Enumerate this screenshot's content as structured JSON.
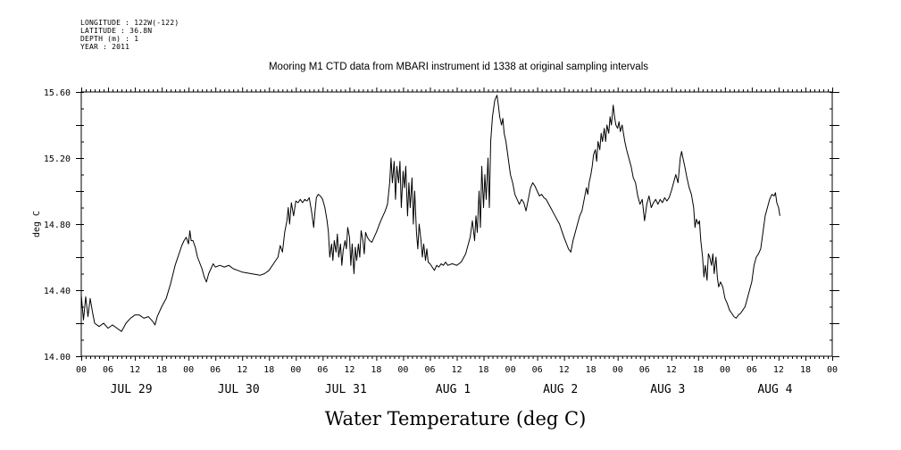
{
  "meta": {
    "longitude": "LONGITUDE : 122W(-122)",
    "latitude": "LATITUDE : 36.8N",
    "depth": "DEPTH (m) : 1",
    "year": "YEAR : 2011"
  },
  "chart_data": {
    "type": "line",
    "title": "Mooring M1 CTD data from MBARI instrument id 1338 at original sampling intervals",
    "xlabel": "Water Temperature (deg C)",
    "ylabel": "deg C",
    "ylim": [
      14.0,
      15.6
    ],
    "yticks": [
      "14.00",
      "14.40",
      "14.80",
      "15.20",
      "15.60"
    ],
    "xlim_hours": [
      0,
      168
    ],
    "hour_tick_labels": [
      "00",
      "06",
      "12",
      "18",
      "00",
      "06",
      "12",
      "18",
      "00",
      "06",
      "12",
      "18",
      "00",
      "06",
      "12",
      "18",
      "00",
      "06",
      "12",
      "18",
      "00",
      "06",
      "12",
      "18",
      "00",
      "06",
      "12",
      "18",
      "00"
    ],
    "day_labels": [
      "JUL 29",
      "JUL 30",
      "JUL 31",
      "AUG  1",
      "AUG  2",
      "AUG  3",
      "AUG  4"
    ],
    "grid": false,
    "series": [
      {
        "color": "#000000",
        "points": [
          [
            0,
            14.37
          ],
          [
            0.5,
            14.22
          ],
          [
            1,
            14.36
          ],
          [
            1.5,
            14.24
          ],
          [
            2,
            14.35
          ],
          [
            2.5,
            14.27
          ],
          [
            3,
            14.2
          ],
          [
            4,
            14.18
          ],
          [
            5,
            14.2
          ],
          [
            6,
            14.17
          ],
          [
            7,
            14.19
          ],
          [
            8,
            14.17
          ],
          [
            9,
            14.15
          ],
          [
            10,
            14.2
          ],
          [
            11,
            14.23
          ],
          [
            12,
            14.25
          ],
          [
            13,
            14.25
          ],
          [
            14,
            14.23
          ],
          [
            15,
            14.24
          ],
          [
            16,
            14.21
          ],
          [
            16.5,
            14.19
          ],
          [
            17,
            14.24
          ],
          [
            18,
            14.3
          ],
          [
            19,
            14.35
          ],
          [
            20,
            14.44
          ],
          [
            21,
            14.55
          ],
          [
            22,
            14.63
          ],
          [
            22.5,
            14.67
          ],
          [
            23,
            14.7
          ],
          [
            23.5,
            14.72
          ],
          [
            24,
            14.68
          ],
          [
            24.3,
            14.76
          ],
          [
            24.6,
            14.7
          ],
          [
            25,
            14.7
          ],
          [
            25.5,
            14.66
          ],
          [
            26,
            14.6
          ],
          [
            27,
            14.53
          ],
          [
            27.5,
            14.48
          ],
          [
            28,
            14.45
          ],
          [
            28.5,
            14.5
          ],
          [
            29,
            14.53
          ],
          [
            29.5,
            14.56
          ],
          [
            30,
            14.54
          ],
          [
            31,
            14.55
          ],
          [
            32,
            14.54
          ],
          [
            33,
            14.55
          ],
          [
            34,
            14.53
          ],
          [
            35,
            14.52
          ],
          [
            36,
            14.51
          ],
          [
            38,
            14.5
          ],
          [
            40,
            14.49
          ],
          [
            41,
            14.5
          ],
          [
            42,
            14.52
          ],
          [
            43,
            14.56
          ],
          [
            44,
            14.6
          ],
          [
            44.5,
            14.67
          ],
          [
            45,
            14.63
          ],
          [
            45.5,
            14.75
          ],
          [
            46,
            14.82
          ],
          [
            46.3,
            14.9
          ],
          [
            46.6,
            14.8
          ],
          [
            47,
            14.93
          ],
          [
            47.5,
            14.85
          ],
          [
            48,
            14.94
          ],
          [
            48.5,
            14.93
          ],
          [
            49,
            14.95
          ],
          [
            49.5,
            14.93
          ],
          [
            50,
            14.95
          ],
          [
            50.5,
            14.94
          ],
          [
            51,
            14.96
          ],
          [
            51.5,
            14.88
          ],
          [
            52,
            14.78
          ],
          [
            52.3,
            14.88
          ],
          [
            52.6,
            14.96
          ],
          [
            53,
            14.98
          ],
          [
            53.5,
            14.97
          ],
          [
            54,
            14.95
          ],
          [
            54.5,
            14.9
          ],
          [
            55,
            14.82
          ],
          [
            55.3,
            14.75
          ],
          [
            55.6,
            14.6
          ],
          [
            56,
            14.68
          ],
          [
            56.3,
            14.58
          ],
          [
            56.6,
            14.7
          ],
          [
            57,
            14.63
          ],
          [
            57.3,
            14.74
          ],
          [
            57.6,
            14.6
          ],
          [
            58,
            14.68
          ],
          [
            58.3,
            14.55
          ],
          [
            58.6,
            14.64
          ],
          [
            59,
            14.7
          ],
          [
            59.3,
            14.65
          ],
          [
            59.6,
            14.78
          ],
          [
            60,
            14.72
          ],
          [
            60.3,
            14.55
          ],
          [
            60.6,
            14.68
          ],
          [
            61,
            14.5
          ],
          [
            61.3,
            14.66
          ],
          [
            61.6,
            14.58
          ],
          [
            62,
            14.68
          ],
          [
            62.3,
            14.6
          ],
          [
            62.6,
            14.76
          ],
          [
            63,
            14.7
          ],
          [
            63.3,
            14.62
          ],
          [
            63.6,
            14.75
          ],
          [
            64,
            14.72
          ],
          [
            64.5,
            14.7
          ],
          [
            65,
            14.69
          ],
          [
            65.5,
            14.72
          ],
          [
            66,
            14.75
          ],
          [
            67,
            14.82
          ],
          [
            68,
            14.88
          ],
          [
            68.5,
            14.92
          ],
          [
            69,
            15.05
          ],
          [
            69.3,
            15.2
          ],
          [
            69.6,
            15.05
          ],
          [
            70,
            15.18
          ],
          [
            70.3,
            14.95
          ],
          [
            70.6,
            15.15
          ],
          [
            71,
            15.05
          ],
          [
            71.3,
            15.18
          ],
          [
            71.6,
            14.9
          ],
          [
            72,
            15.12
          ],
          [
            72.3,
            15.02
          ],
          [
            72.6,
            15.15
          ],
          [
            73,
            14.85
          ],
          [
            73.3,
            15.05
          ],
          [
            73.6,
            14.9
          ],
          [
            74,
            15.08
          ],
          [
            74.3,
            14.8
          ],
          [
            74.6,
            15.0
          ],
          [
            75,
            14.75
          ],
          [
            75.3,
            14.65
          ],
          [
            75.6,
            14.8
          ],
          [
            76,
            14.7
          ],
          [
            76.3,
            14.6
          ],
          [
            76.6,
            14.68
          ],
          [
            77,
            14.58
          ],
          [
            77.3,
            14.65
          ],
          [
            77.6,
            14.57
          ],
          [
            78,
            14.56
          ],
          [
            78.5,
            14.54
          ],
          [
            79,
            14.52
          ],
          [
            79.5,
            14.55
          ],
          [
            80,
            14.54
          ],
          [
            80.5,
            14.56
          ],
          [
            81,
            14.55
          ],
          [
            81.5,
            14.57
          ],
          [
            82,
            14.55
          ],
          [
            83,
            14.56
          ],
          [
            84,
            14.55
          ],
          [
            85,
            14.57
          ],
          [
            86,
            14.62
          ],
          [
            87,
            14.72
          ],
          [
            87.5,
            14.82
          ],
          [
            88,
            14.7
          ],
          [
            88.3,
            14.85
          ],
          [
            88.6,
            14.75
          ],
          [
            89,
            15.0
          ],
          [
            89.3,
            14.78
          ],
          [
            89.6,
            15.15
          ],
          [
            90,
            14.9
          ],
          [
            90.3,
            15.1
          ],
          [
            90.6,
            14.95
          ],
          [
            91,
            15.2
          ],
          [
            91.3,
            14.9
          ],
          [
            91.6,
            15.3
          ],
          [
            92,
            15.45
          ],
          [
            92.5,
            15.55
          ],
          [
            93,
            15.58
          ],
          [
            93.3,
            15.52
          ],
          [
            93.6,
            15.45
          ],
          [
            94,
            15.4
          ],
          [
            94.3,
            15.44
          ],
          [
            94.6,
            15.35
          ],
          [
            95,
            15.3
          ],
          [
            95.5,
            15.2
          ],
          [
            96,
            15.1
          ],
          [
            96.5,
            15.05
          ],
          [
            97,
            14.98
          ],
          [
            97.5,
            14.95
          ],
          [
            98,
            14.92
          ],
          [
            98.5,
            14.95
          ],
          [
            99,
            14.93
          ],
          [
            99.5,
            14.88
          ],
          [
            100,
            14.95
          ],
          [
            100.5,
            15.02
          ],
          [
            101,
            15.05
          ],
          [
            101.5,
            15.03
          ],
          [
            102,
            15.0
          ],
          [
            102.5,
            14.97
          ],
          [
            103,
            14.98
          ],
          [
            103.5,
            14.96
          ],
          [
            104,
            14.95
          ],
          [
            105,
            14.9
          ],
          [
            106,
            14.85
          ],
          [
            107,
            14.8
          ],
          [
            108,
            14.72
          ],
          [
            109,
            14.65
          ],
          [
            109.5,
            14.63
          ],
          [
            110,
            14.7
          ],
          [
            110.5,
            14.75
          ],
          [
            111,
            14.8
          ],
          [
            111.5,
            14.85
          ],
          [
            112,
            14.88
          ],
          [
            112.5,
            14.95
          ],
          [
            113,
            15.02
          ],
          [
            113.3,
            14.98
          ],
          [
            113.6,
            15.05
          ],
          [
            114,
            15.1
          ],
          [
            114.3,
            15.15
          ],
          [
            114.6,
            15.22
          ],
          [
            115,
            15.25
          ],
          [
            115.3,
            15.18
          ],
          [
            115.6,
            15.3
          ],
          [
            116,
            15.25
          ],
          [
            116.3,
            15.35
          ],
          [
            116.6,
            15.3
          ],
          [
            117,
            15.38
          ],
          [
            117.3,
            15.3
          ],
          [
            117.6,
            15.4
          ],
          [
            118,
            15.35
          ],
          [
            118.3,
            15.45
          ],
          [
            118.6,
            15.4
          ],
          [
            119,
            15.52
          ],
          [
            119.3,
            15.45
          ],
          [
            119.6,
            15.4
          ],
          [
            120,
            15.38
          ],
          [
            120.3,
            15.42
          ],
          [
            120.6,
            15.36
          ],
          [
            121,
            15.4
          ],
          [
            121.3,
            15.35
          ],
          [
            121.6,
            15.3
          ],
          [
            122,
            15.25
          ],
          [
            122.5,
            15.2
          ],
          [
            123,
            15.15
          ],
          [
            123.5,
            15.08
          ],
          [
            124,
            15.05
          ],
          [
            124.5,
            14.97
          ],
          [
            125,
            14.92
          ],
          [
            125.5,
            14.95
          ],
          [
            126,
            14.82
          ],
          [
            126.5,
            14.92
          ],
          [
            127,
            14.97
          ],
          [
            127.5,
            14.9
          ],
          [
            128,
            14.93
          ],
          [
            128.5,
            14.95
          ],
          [
            129,
            14.92
          ],
          [
            129.5,
            14.95
          ],
          [
            130,
            14.93
          ],
          [
            130.5,
            14.96
          ],
          [
            131,
            14.94
          ],
          [
            131.5,
            14.96
          ],
          [
            132,
            15.0
          ],
          [
            132.5,
            15.05
          ],
          [
            133,
            15.1
          ],
          [
            133.5,
            15.05
          ],
          [
            134,
            15.2
          ],
          [
            134.3,
            15.24
          ],
          [
            134.6,
            15.2
          ],
          [
            135,
            15.15
          ],
          [
            135.5,
            15.08
          ],
          [
            136,
            15.02
          ],
          [
            136.5,
            14.98
          ],
          [
            137,
            14.9
          ],
          [
            137.3,
            14.78
          ],
          [
            137.6,
            14.83
          ],
          [
            138,
            14.8
          ],
          [
            138.3,
            14.82
          ],
          [
            138.6,
            14.7
          ],
          [
            139,
            14.6
          ],
          [
            139.3,
            14.48
          ],
          [
            139.6,
            14.55
          ],
          [
            140,
            14.46
          ],
          [
            140.3,
            14.62
          ],
          [
            140.6,
            14.6
          ],
          [
            141,
            14.55
          ],
          [
            141.3,
            14.62
          ],
          [
            141.6,
            14.5
          ],
          [
            142,
            14.6
          ],
          [
            142.3,
            14.48
          ],
          [
            142.6,
            14.42
          ],
          [
            143,
            14.45
          ],
          [
            143.5,
            14.42
          ],
          [
            144,
            14.35
          ],
          [
            144.5,
            14.32
          ],
          [
            145,
            14.28
          ],
          [
            145.5,
            14.26
          ],
          [
            146,
            14.24
          ],
          [
            146.5,
            14.23
          ],
          [
            147,
            14.25
          ],
          [
            147.5,
            14.26
          ],
          [
            148,
            14.28
          ],
          [
            148.5,
            14.3
          ],
          [
            149,
            14.35
          ],
          [
            149.5,
            14.4
          ],
          [
            150,
            14.45
          ],
          [
            150.5,
            14.55
          ],
          [
            151,
            14.6
          ],
          [
            151.5,
            14.62
          ],
          [
            152,
            14.65
          ],
          [
            152.5,
            14.75
          ],
          [
            153,
            14.85
          ],
          [
            153.5,
            14.9
          ],
          [
            154,
            14.95
          ],
          [
            154.5,
            14.98
          ],
          [
            155,
            14.97
          ],
          [
            155.3,
            14.99
          ],
          [
            155.6,
            14.93
          ],
          [
            156,
            14.9
          ],
          [
            156.3,
            14.85
          ]
        ]
      }
    ]
  }
}
